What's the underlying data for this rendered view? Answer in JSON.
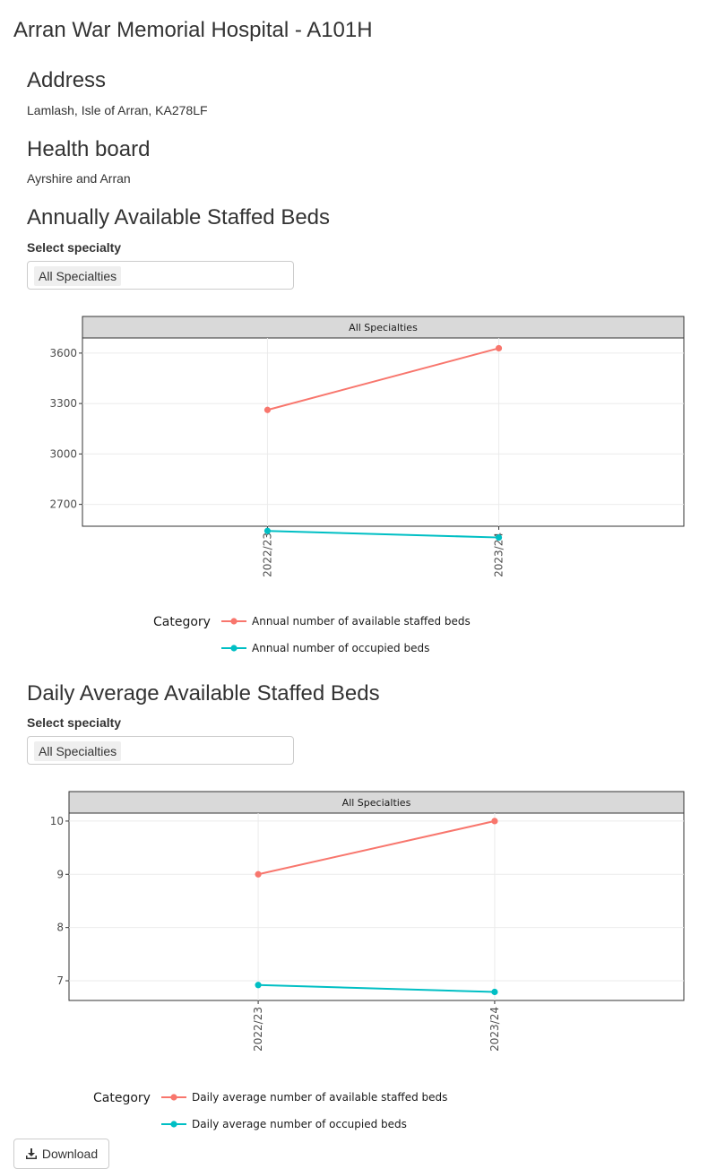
{
  "page": {
    "title": "Arran War Memorial Hospital - A101H",
    "address_heading": "Address",
    "address": "Lamlash, Isle of Arran, KA278LF",
    "health_board_heading": "Health board",
    "health_board": "Ayrshire and Arran"
  },
  "annual": {
    "heading": "Annually Available Staffed Beds",
    "select_label": "Select specialty",
    "selected": "All Specialties"
  },
  "daily": {
    "heading": "Daily Average Available Staffed Beds",
    "select_label": "Select specialty",
    "selected": "All Specialties"
  },
  "download": {
    "label": "Download",
    "icon": "download-icon"
  },
  "chart_data": [
    {
      "type": "line",
      "facet": "All Specialties",
      "categories": [
        "2022/23",
        "2023/24"
      ],
      "ylim": [
        2570,
        3690
      ],
      "yticks": [
        2700,
        3000,
        3300,
        3600
      ],
      "grid": true,
      "legend_title": "Category",
      "legend_position": "bottom",
      "series": [
        {
          "name": "Annual number of available staffed beds",
          "color": "#F8766D",
          "values": [
            3262,
            3629
          ]
        },
        {
          "name": "Annual number of occupied beds",
          "color": "#00BFC4",
          "values": [
            2542,
            2503
          ]
        }
      ]
    },
    {
      "type": "line",
      "facet": "All Specialties",
      "categories": [
        "2022/23",
        "2023/24"
      ],
      "ylim": [
        6.63,
        10.15
      ],
      "yticks": [
        7,
        8,
        9,
        10
      ],
      "grid": true,
      "legend_title": "Category",
      "legend_position": "bottom",
      "series": [
        {
          "name": "Daily average number of available staffed beds",
          "color": "#F8766D",
          "values": [
            9.0,
            10.0
          ]
        },
        {
          "name": "Daily average number of occupied beds",
          "color": "#00BFC4",
          "values": [
            6.92,
            6.79
          ]
        }
      ]
    }
  ]
}
